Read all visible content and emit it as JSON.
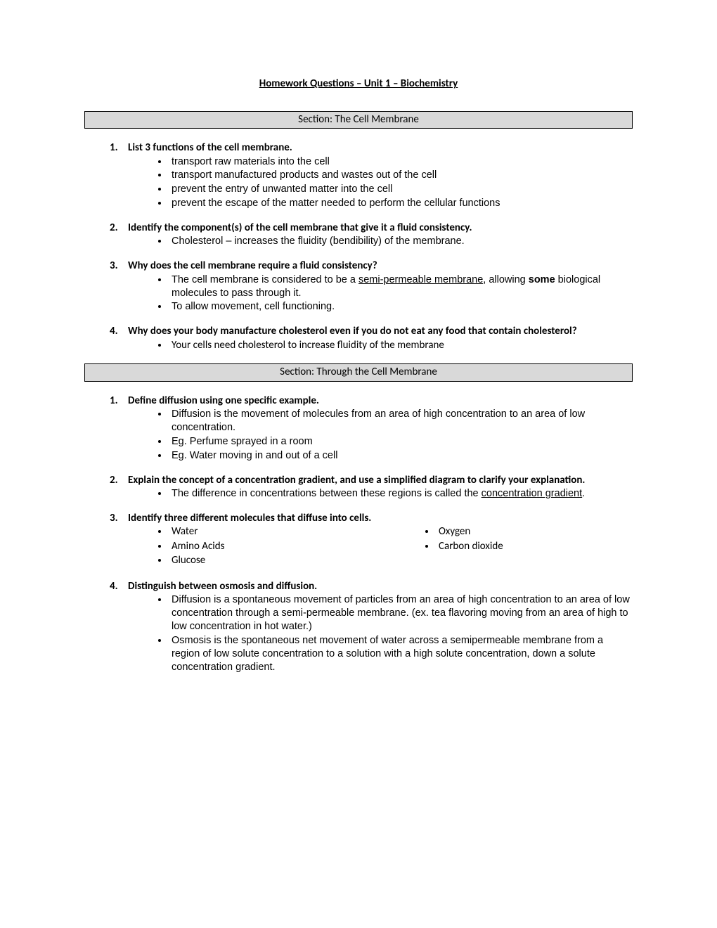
{
  "title": "Homework Questions – Unit 1 – Biochemistry",
  "section1": {
    "header": "Section: The Cell Membrane",
    "q1": {
      "num": "1.",
      "text": "List 3 functions of the cell membrane.",
      "a1": "transport raw materials into the cell",
      "a2": "transport manufactured products and wastes out of the cell",
      "a3": "prevent the entry of unwanted matter into the cell",
      "a4": "prevent the escape of the matter needed to perform the cellular functions"
    },
    "q2": {
      "num": "2.",
      "text": "Identify the component(s) of the cell membrane that give it a fluid consistency.",
      "a1": "Cholesterol – increases the fluidity (bendibility) of the membrane."
    },
    "q3": {
      "num": "3.",
      "text": "Why does the cell membrane require a fluid consistency?",
      "a1_pre": "The cell membrane is considered to be a ",
      "a1_underline": "semi-permeable membrane",
      "a1_post": ", allowing ",
      "a1_bold": "some",
      "a1_end": " biological molecules to pass through it.",
      "a2": "To allow movement, cell functioning."
    },
    "q4": {
      "num": "4.",
      "text": "Why does your body manufacture cholesterol even if you do not eat any food that contain cholesterol?",
      "a1": "Your cells need cholesterol to increase fluidity of the membrane"
    }
  },
  "section2": {
    "header": "Section: Through the Cell Membrane",
    "q1": {
      "num": "1.",
      "text": "Define diffusion using one specific example.",
      "a1": "Diffusion is the movement of molecules from an area of high concentration to an area of low concentration.",
      "a2": "Eg. Perfume sprayed in a room",
      "a3": "Eg. Water moving in and out of a cell"
    },
    "q2": {
      "num": "2.",
      "text": "Explain the concept of a concentration gradient, and use a simplified diagram to clarify your explanation.",
      "a1_pre": "The difference in concentrations between these regions is called the ",
      "a1_underline": "concentration gradient",
      "a1_post": "."
    },
    "q3": {
      "num": "3.",
      "text": "Identify three different molecules that diffuse into cells.",
      "col1_a": "Water",
      "col1_b": "Amino Acids",
      "col1_c": "Glucose",
      "col2_a": "Oxygen",
      "col2_b": "Carbon dioxide"
    },
    "q4": {
      "num": "4.",
      "text": "Distinguish between osmosis and diffusion.",
      "a1": "Diffusion is a spontaneous movement of particles from an area of high concentration to an area of low concentration through a semi-permeable membrane. (ex. tea flavoring moving from an area of high to low concentration in hot water.)",
      "a2": "Osmosis is the spontaneous net movement of water across a semipermeable membrane from a region of low solute concentration to a solution with a high solute concentration, down a solute concentration gradient."
    }
  }
}
